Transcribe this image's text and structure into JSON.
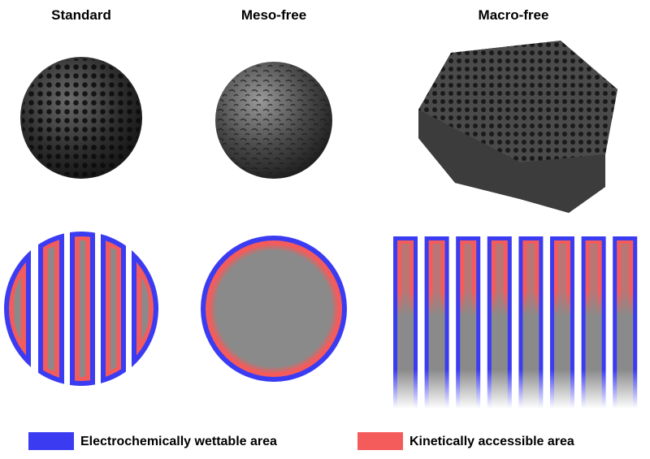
{
  "titles": [
    "Standard",
    "Meso-free",
    "Macro-free"
  ],
  "legend": [
    {
      "label": "Electrochemically wettable area",
      "color": "#3b3cf2"
    },
    {
      "label": "Kinetically accessible area",
      "color": "#f45c5c"
    }
  ]
}
